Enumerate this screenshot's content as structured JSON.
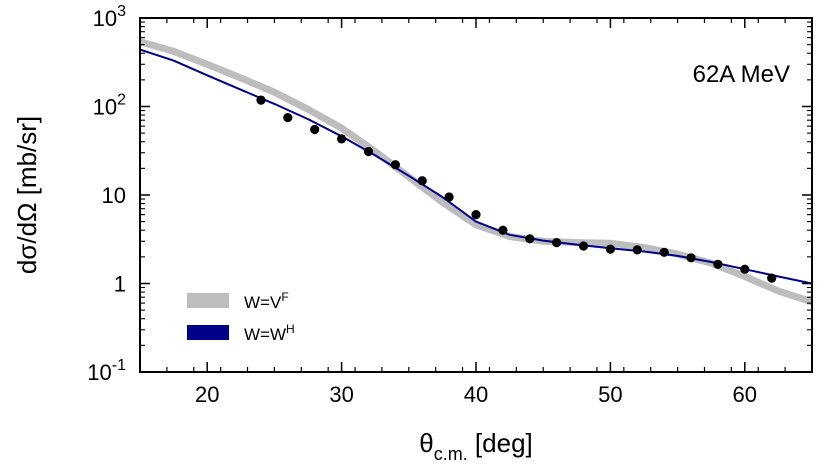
{
  "chart_data": {
    "type": "scatter",
    "annotation": "62A MeV",
    "xlabel": {
      "main": "θ",
      "sub": "c.m.",
      "tail": " [deg]"
    },
    "ylabel": "dσ/dΩ [mb/sr]",
    "xlim": [
      15,
      65
    ],
    "ylim": [
      0.1,
      1000
    ],
    "yscale": "log",
    "grid": false,
    "x_ticks": [
      20,
      30,
      40,
      50,
      60
    ],
    "x_tick_labels": [
      "20",
      "30",
      "40",
      "50",
      "60"
    ],
    "y_ticks": [
      {
        "value": 0.1,
        "base": "10",
        "exp": "-1"
      },
      {
        "value": 1,
        "base": "1",
        "exp": ""
      },
      {
        "value": 10,
        "base": "10",
        "exp": ""
      },
      {
        "value": 100,
        "base": "10",
        "exp": "2"
      },
      {
        "value": 1000,
        "base": "10",
        "exp": "3"
      }
    ],
    "legend_position": "bottom-left",
    "series": [
      {
        "name": "W=V^F",
        "name_base": "W=V",
        "name_sup": "F",
        "kind": "band",
        "color": "#bdbdbd",
        "x": [
          15,
          17.5,
          20,
          22.5,
          25,
          27.5,
          30,
          32.5,
          35,
          37.5,
          40,
          42.5,
          45,
          47.5,
          50,
          52.5,
          55,
          57.5,
          60,
          62.5,
          65
        ],
        "y": [
          540,
          420,
          300,
          210,
          145,
          93,
          57,
          31,
          16,
          8.3,
          4.6,
          3.4,
          3.0,
          2.9,
          2.85,
          2.55,
          2.15,
          1.7,
          1.2,
          0.82,
          0.62
        ]
      },
      {
        "name": "W=W^H",
        "name_base": "W=W",
        "name_sup": "H",
        "kind": "line",
        "color": "#00008b",
        "x": [
          15,
          17.5,
          20,
          22.5,
          25,
          27.5,
          30,
          32.5,
          35,
          37.5,
          40,
          42.5,
          45,
          47.5,
          50,
          52.5,
          55,
          57.5,
          60,
          62.5,
          65
        ],
        "y": [
          440,
          330,
          225,
          155,
          107,
          72,
          46,
          28,
          16.5,
          9.5,
          5.0,
          3.55,
          3.05,
          2.75,
          2.5,
          2.3,
          2.05,
          1.75,
          1.45,
          1.2,
          1.0
        ]
      },
      {
        "name": "data",
        "kind": "points",
        "color": "#000000",
        "x": [
          24,
          26,
          28,
          30,
          32,
          34,
          36,
          38,
          40,
          42,
          44,
          46,
          48,
          50,
          52,
          54,
          56,
          58,
          60,
          62
        ],
        "y": [
          118,
          75,
          55,
          43,
          31,
          22,
          14.5,
          9.5,
          6.0,
          4.0,
          3.2,
          2.9,
          2.65,
          2.45,
          2.4,
          2.25,
          1.95,
          1.65,
          1.45,
          1.15
        ]
      }
    ]
  }
}
